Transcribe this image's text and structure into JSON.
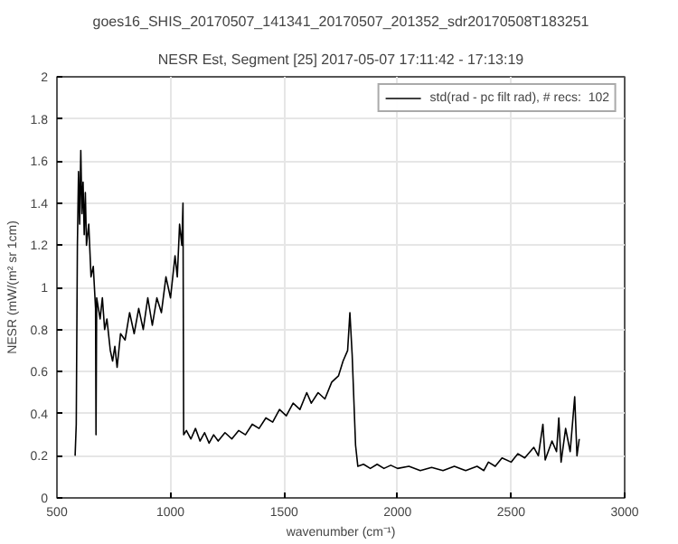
{
  "chart_data": {
    "type": "line",
    "title": "goes16_SHIS_20170507_141341_20170507_201352_sdr20170508T183251",
    "subtitle": "NESR Est, Segment [25] 2017-05-07 17:11:42 - 17:13:19",
    "xlabel": "wavenumber (cm⁻¹)",
    "ylabel": "NESR (mW/(m² sr 1cm)",
    "x": [
      580,
      585,
      590,
      595,
      600,
      605,
      610,
      615,
      620,
      625,
      630,
      640,
      650,
      660,
      670,
      672,
      675,
      690,
      700,
      710,
      720,
      735,
      745,
      755,
      765,
      780,
      800,
      820,
      840,
      860,
      880,
      900,
      920,
      940,
      960,
      980,
      1000,
      1020,
      1030,
      1040,
      1050,
      1055,
      1058,
      1070,
      1090,
      1110,
      1130,
      1150,
      1170,
      1190,
      1210,
      1240,
      1270,
      1300,
      1330,
      1360,
      1390,
      1420,
      1450,
      1480,
      1510,
      1540,
      1570,
      1600,
      1620,
      1650,
      1680,
      1710,
      1740,
      1760,
      1780,
      1790,
      1800,
      1815,
      1825,
      1850,
      1880,
      1910,
      1940,
      1970,
      2000,
      2050,
      2100,
      2150,
      2200,
      2250,
      2300,
      2350,
      2380,
      2400,
      2430,
      2460,
      2500,
      2530,
      2560,
      2600,
      2620,
      2640,
      2650,
      2680,
      2700,
      2710,
      2720,
      2740,
      2760,
      2780,
      2790,
      2800
    ],
    "series": [
      {
        "name": "std(rad - pc filt rad), # recs:  102",
        "color": "#000000",
        "values": [
          0.2,
          0.35,
          1.2,
          1.55,
          1.3,
          1.65,
          1.35,
          1.5,
          1.25,
          1.45,
          1.2,
          1.3,
          1.05,
          1.1,
          0.9,
          0.3,
          0.95,
          0.85,
          0.95,
          0.8,
          0.85,
          0.7,
          0.65,
          0.72,
          0.62,
          0.78,
          0.75,
          0.88,
          0.78,
          0.9,
          0.8,
          0.95,
          0.82,
          0.95,
          0.88,
          1.05,
          0.95,
          1.15,
          1.05,
          1.3,
          1.2,
          1.4,
          0.3,
          0.32,
          0.28,
          0.33,
          0.27,
          0.31,
          0.26,
          0.3,
          0.27,
          0.31,
          0.28,
          0.32,
          0.3,
          0.35,
          0.33,
          0.38,
          0.36,
          0.42,
          0.39,
          0.45,
          0.42,
          0.5,
          0.45,
          0.5,
          0.47,
          0.55,
          0.58,
          0.65,
          0.7,
          0.88,
          0.68,
          0.25,
          0.15,
          0.16,
          0.14,
          0.16,
          0.14,
          0.155,
          0.14,
          0.15,
          0.13,
          0.145,
          0.13,
          0.15,
          0.13,
          0.15,
          0.13,
          0.17,
          0.15,
          0.19,
          0.17,
          0.21,
          0.19,
          0.24,
          0.2,
          0.35,
          0.18,
          0.27,
          0.22,
          0.38,
          0.17,
          0.33,
          0.22,
          0.48,
          0.2,
          0.28
        ]
      }
    ],
    "xlim": [
      500,
      3000
    ],
    "xticks": [
      500,
      1000,
      1500,
      2000,
      2500,
      3000
    ],
    "ylim": [
      0,
      2
    ],
    "yticks": [
      0,
      0.2,
      0.4,
      0.6,
      0.8,
      1,
      1.2,
      1.4,
      1.6,
      1.8,
      2
    ],
    "grid": true,
    "legend": "top right",
    "line_style": "solid",
    "marker": "none"
  }
}
